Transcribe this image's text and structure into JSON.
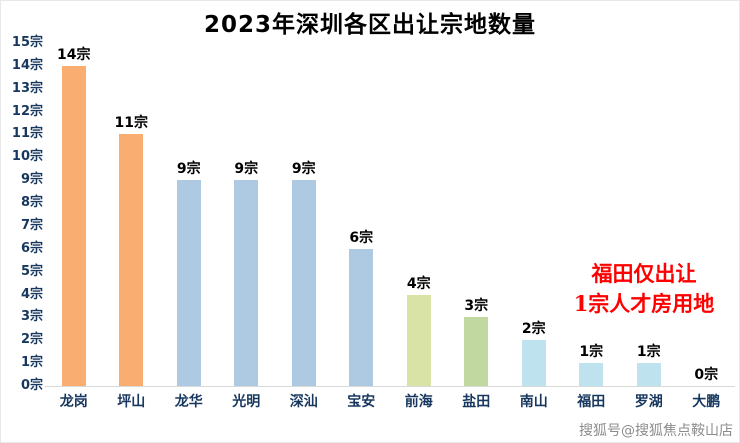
{
  "title": "2023年深圳各区出让宗地数量",
  "annotation": {
    "line1": "福田仅出让",
    "line2": "1宗人才房用地",
    "color": "#FF0000"
  },
  "watermark": "搜狐号@搜狐焦点鞍山店",
  "chart_data": {
    "type": "bar",
    "title": "2023年深圳各区出让宗地数量",
    "categories": [
      "龙岗",
      "坪山",
      "龙华",
      "光明",
      "深汕",
      "宝安",
      "前海",
      "盐田",
      "南山",
      "福田",
      "罗湖",
      "大鹏"
    ],
    "values": [
      14,
      11,
      9,
      9,
      9,
      6,
      4,
      3,
      2,
      1,
      1,
      0
    ],
    "labels": [
      "14宗",
      "11宗",
      "9宗",
      "9宗",
      "9宗",
      "6宗",
      "4宗",
      "3宗",
      "2宗",
      "1宗",
      "1宗",
      "0宗"
    ],
    "bar_colors": [
      "#FAAD70",
      "#FAAD70",
      "#AEC9E2",
      "#AEC9E2",
      "#AEC9E2",
      "#AEC9E2",
      "#D8E3A5",
      "#C2D8A1",
      "#BFE3EE",
      "#BFE3EE",
      "#BFE3EE",
      "#BFE3EE"
    ],
    "ylim": [
      0,
      15
    ],
    "yticks": [
      15,
      14,
      13,
      12,
      11,
      10,
      9,
      8,
      7,
      6,
      5,
      4,
      3,
      2,
      1,
      0
    ],
    "ytick_suffix": "宗",
    "xlabel": "",
    "ylabel": "",
    "grid": false,
    "legend": false,
    "axis_label_color": "#17375E"
  }
}
